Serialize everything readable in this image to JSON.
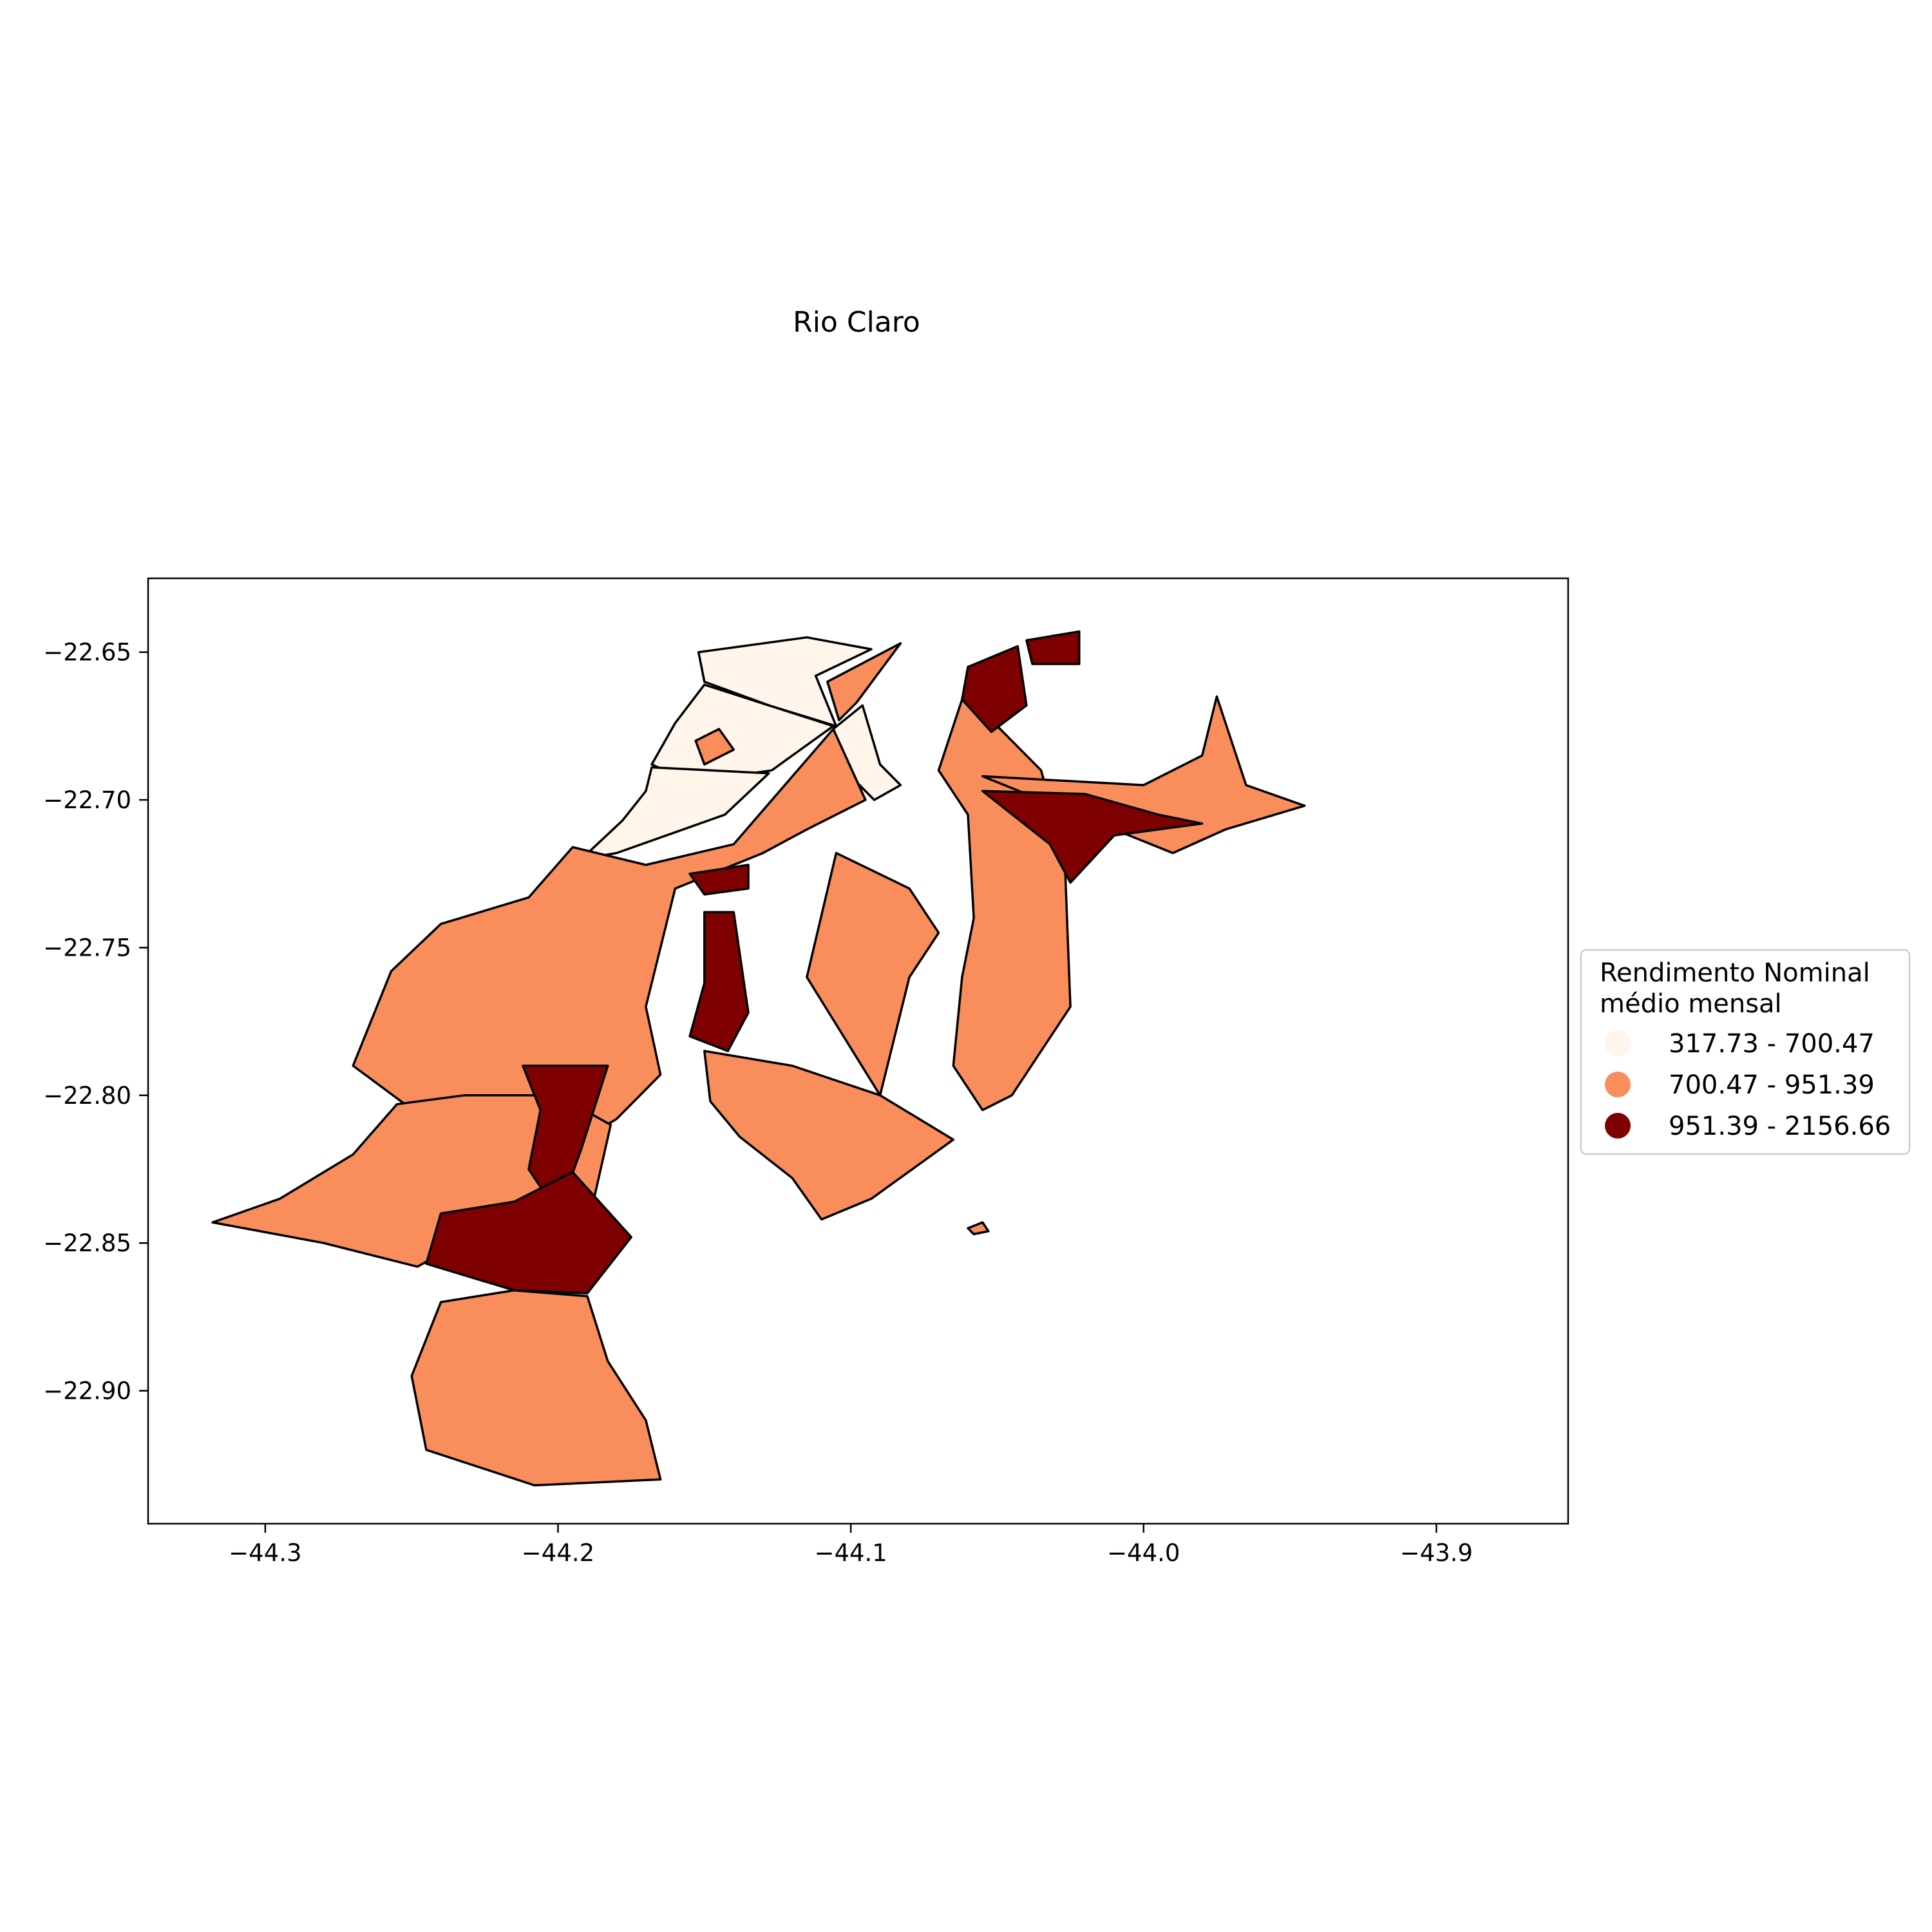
{
  "title": "Rio Claro",
  "colors": {
    "low": "#fff5eb",
    "mid": "#f98e5c",
    "high": "#7f0000"
  },
  "chart_data": {
    "type": "choropleth",
    "title": "Rio Claro",
    "xlim": [
      -44.34,
      -43.855
    ],
    "ylim": [
      -22.945,
      -22.625
    ],
    "x_ticks": [
      -44.3,
      -44.2,
      -44.1,
      -44.0,
      -43.9
    ],
    "x_tick_labels": [
      "−44.3",
      "−44.2",
      "−44.1",
      "−44.0",
      "−43.9"
    ],
    "y_ticks": [
      -22.65,
      -22.7,
      -22.75,
      -22.8,
      -22.85,
      -22.9
    ],
    "y_tick_labels": [
      "−22.65",
      "−22.70",
      "−22.75",
      "−22.80",
      "−22.85",
      "−22.90"
    ],
    "legend": {
      "title_line1": "Rendimento Nominal",
      "title_line2": "médio mensal",
      "placement": "right",
      "classes": [
        {
          "label": "317.73 - 700.47",
          "color": "#fff5eb"
        },
        {
          "label": "700.47 - 951.39",
          "color": "#f98e5c"
        },
        {
          "label": "951.39 - 2156.66",
          "color": "#7f0000"
        }
      ]
    },
    "regions": [
      {
        "class": 0,
        "coords": [
          [
            -44.152,
            -22.65
          ],
          [
            -44.115,
            -22.645
          ],
          [
            -44.093,
            -22.649
          ],
          [
            -44.112,
            -22.658
          ],
          [
            -44.105,
            -22.675
          ],
          [
            -44.128,
            -22.668
          ],
          [
            -44.15,
            -22.66
          ]
        ]
      },
      {
        "class": 0,
        "coords": [
          [
            -44.15,
            -22.661
          ],
          [
            -44.128,
            -22.668
          ],
          [
            -44.106,
            -22.675
          ],
          [
            -44.127,
            -22.69
          ],
          [
            -44.155,
            -22.694
          ],
          [
            -44.168,
            -22.688
          ],
          [
            -44.16,
            -22.674
          ]
        ]
      },
      {
        "class": 0,
        "coords": [
          [
            -44.168,
            -22.689
          ],
          [
            -44.128,
            -22.691
          ],
          [
            -44.143,
            -22.705
          ],
          [
            -44.18,
            -22.718
          ],
          [
            -44.192,
            -22.72
          ],
          [
            -44.178,
            -22.707
          ],
          [
            -44.17,
            -22.697
          ]
        ]
      },
      {
        "class": 0,
        "coords": [
          [
            -44.106,
            -22.676
          ],
          [
            -44.096,
            -22.668
          ],
          [
            -44.09,
            -22.688
          ],
          [
            -44.083,
            -22.695
          ],
          [
            -44.092,
            -22.7
          ],
          [
            -44.102,
            -22.69
          ]
        ]
      },
      {
        "class": 1,
        "coords": [
          [
            -44.153,
            -22.68
          ],
          [
            -44.145,
            -22.676
          ],
          [
            -44.14,
            -22.683
          ],
          [
            -44.15,
            -22.688
          ]
        ]
      },
      {
        "class": 1,
        "coords": [
          [
            -44.108,
            -22.66
          ],
          [
            -44.083,
            -22.647
          ],
          [
            -44.098,
            -22.667
          ],
          [
            -44.104,
            -22.673
          ]
        ]
      },
      {
        "class": 1,
        "coords": [
          [
            -44.106,
            -22.676
          ],
          [
            -44.14,
            -22.715
          ],
          [
            -44.17,
            -22.722
          ],
          [
            -44.195,
            -22.716
          ],
          [
            -44.21,
            -22.733
          ],
          [
            -44.24,
            -22.742
          ],
          [
            -44.257,
            -22.758
          ],
          [
            -44.27,
            -22.79
          ],
          [
            -44.24,
            -22.812
          ],
          [
            -44.22,
            -22.832
          ],
          [
            -44.18,
            -22.808
          ],
          [
            -44.165,
            -22.793
          ],
          [
            -44.17,
            -22.77
          ],
          [
            -44.16,
            -22.73
          ],
          [
            -44.13,
            -22.718
          ],
          [
            -44.115,
            -22.71
          ],
          [
            -44.095,
            -22.7
          ]
        ]
      },
      {
        "class": 1,
        "coords": [
          [
            -44.232,
            -22.8
          ],
          [
            -44.2,
            -22.8
          ],
          [
            -44.182,
            -22.81
          ],
          [
            -44.19,
            -22.845
          ],
          [
            -44.23,
            -22.848
          ],
          [
            -44.248,
            -22.858
          ],
          [
            -44.28,
            -22.85
          ],
          [
            -44.318,
            -22.843
          ],
          [
            -44.295,
            -22.835
          ],
          [
            -44.27,
            -22.82
          ],
          [
            -44.255,
            -22.803
          ]
        ]
      },
      {
        "class": 1,
        "coords": [
          [
            -44.24,
            -22.87
          ],
          [
            -44.215,
            -22.866
          ],
          [
            -44.19,
            -22.868
          ],
          [
            -44.183,
            -22.89
          ],
          [
            -44.17,
            -22.91
          ],
          [
            -44.165,
            -22.93
          ],
          [
            -44.208,
            -22.932
          ],
          [
            -44.245,
            -22.92
          ],
          [
            -44.25,
            -22.895
          ]
        ]
      },
      {
        "class": 1,
        "coords": [
          [
            -44.15,
            -22.785
          ],
          [
            -44.12,
            -22.79
          ],
          [
            -44.09,
            -22.8
          ],
          [
            -44.065,
            -22.815
          ],
          [
            -44.093,
            -22.835
          ],
          [
            -44.11,
            -22.842
          ],
          [
            -44.12,
            -22.828
          ],
          [
            -44.138,
            -22.814
          ],
          [
            -44.148,
            -22.802
          ]
        ]
      },
      {
        "class": 1,
        "coords": [
          [
            -44.09,
            -22.8
          ],
          [
            -44.08,
            -22.76
          ],
          [
            -44.07,
            -22.745
          ],
          [
            -44.08,
            -22.73
          ],
          [
            -44.105,
            -22.718
          ],
          [
            -44.115,
            -22.76
          ]
        ]
      },
      {
        "class": 1,
        "coords": [
          [
            -44.06,
            -22.66
          ],
          [
            -44.05,
            -22.675
          ],
          [
            -44.035,
            -22.69
          ],
          [
            -44.027,
            -22.718
          ],
          [
            -44.025,
            -22.77
          ],
          [
            -44.045,
            -22.8
          ],
          [
            -44.055,
            -22.805
          ],
          [
            -44.065,
            -22.79
          ],
          [
            -44.062,
            -22.76
          ],
          [
            -44.058,
            -22.74
          ],
          [
            -44.06,
            -22.705
          ],
          [
            -44.07,
            -22.69
          ]
        ]
      },
      {
        "class": 1,
        "coords": [
          [
            -44.055,
            -22.692
          ],
          [
            -44.0,
            -22.695
          ],
          [
            -43.99,
            -22.69
          ],
          [
            -43.98,
            -22.685
          ],
          [
            -43.975,
            -22.665
          ],
          [
            -43.965,
            -22.695
          ],
          [
            -43.945,
            -22.702
          ],
          [
            -43.972,
            -22.71
          ],
          [
            -43.99,
            -22.718
          ],
          [
            -44.02,
            -22.706
          ]
        ]
      },
      {
        "class": 1,
        "coords": [
          [
            -44.06,
            -22.845
          ],
          [
            -44.055,
            -22.843
          ],
          [
            -44.053,
            -22.846
          ],
          [
            -44.058,
            -22.847
          ]
        ]
      },
      {
        "class": 2,
        "coords": [
          [
            -44.06,
            -22.655
          ],
          [
            -44.043,
            -22.648
          ],
          [
            -44.04,
            -22.668
          ],
          [
            -44.052,
            -22.677
          ],
          [
            -44.062,
            -22.666
          ]
        ]
      },
      {
        "class": 2,
        "coords": [
          [
            -44.04,
            -22.646
          ],
          [
            -44.022,
            -22.643
          ],
          [
            -44.022,
            -22.654
          ],
          [
            -44.038,
            -22.654
          ]
        ]
      },
      {
        "class": 2,
        "coords": [
          [
            -44.055,
            -22.697
          ],
          [
            -44.02,
            -22.698
          ],
          [
            -43.995,
            -22.705
          ],
          [
            -43.98,
            -22.708
          ],
          [
            -44.01,
            -22.712
          ],
          [
            -44.025,
            -22.728
          ],
          [
            -44.032,
            -22.715
          ]
        ]
      },
      {
        "class": 2,
        "coords": [
          [
            -44.15,
            -22.738
          ],
          [
            -44.14,
            -22.738
          ],
          [
            -44.135,
            -22.772
          ],
          [
            -44.142,
            -22.785
          ],
          [
            -44.155,
            -22.78
          ],
          [
            -44.15,
            -22.762
          ]
        ]
      },
      {
        "class": 2,
        "coords": [
          [
            -44.155,
            -22.725
          ],
          [
            -44.135,
            -22.722
          ],
          [
            -44.135,
            -22.73
          ],
          [
            -44.15,
            -22.732
          ]
        ]
      },
      {
        "class": 2,
        "coords": [
          [
            -44.212,
            -22.79
          ],
          [
            -44.183,
            -22.79
          ],
          [
            -44.192,
            -22.818
          ],
          [
            -44.2,
            -22.84
          ],
          [
            -44.21,
            -22.825
          ],
          [
            -44.206,
            -22.805
          ]
        ]
      },
      {
        "class": 2,
        "coords": [
          [
            -44.195,
            -22.826
          ],
          [
            -44.175,
            -22.848
          ],
          [
            -44.19,
            -22.867
          ],
          [
            -44.215,
            -22.866
          ],
          [
            -44.245,
            -22.857
          ],
          [
            -44.24,
            -22.84
          ],
          [
            -44.215,
            -22.836
          ]
        ]
      }
    ]
  }
}
